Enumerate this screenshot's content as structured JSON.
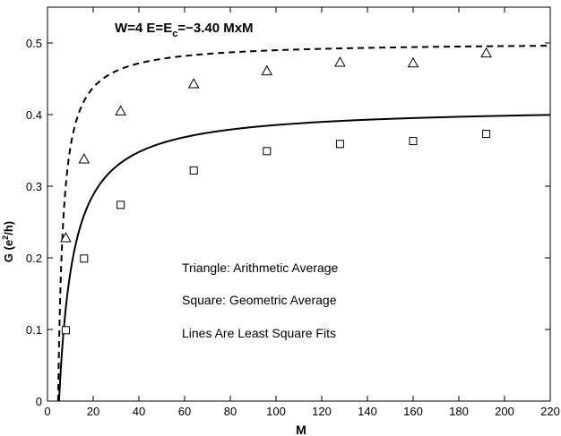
{
  "chart_data": {
    "type": "scatter",
    "title_parts": {
      "prefix": "W=4  E=E",
      "sub": "c",
      "suffix": "=−3.40  MxM"
    },
    "xlabel": "M",
    "ylabel_parts": {
      "prefix": "G (e",
      "sup": "2",
      "suffix": "/h)"
    },
    "xlim": [
      0,
      220
    ],
    "ylim": [
      0,
      0.55
    ],
    "xticks": [
      0,
      20,
      40,
      60,
      80,
      100,
      120,
      140,
      160,
      180,
      200,
      220
    ],
    "yticks": [
      0,
      0.1,
      0.2,
      0.3,
      0.4,
      0.5
    ],
    "xtick_labels": [
      "0",
      "20",
      "40",
      "60",
      "80",
      "100",
      "120",
      "140",
      "160",
      "180",
      "200",
      "220"
    ],
    "ytick_labels": [
      "0",
      "0.1",
      "0.2",
      "0.3",
      "0.4",
      "0.5"
    ],
    "grid": false,
    "series": [
      {
        "marker": "triangle",
        "line": "dashed",
        "points": [
          {
            "x": 8,
            "y": 0.228
          },
          {
            "x": 16,
            "y": 0.338
          },
          {
            "x": 32,
            "y": 0.405
          },
          {
            "x": 64,
            "y": 0.443
          },
          {
            "x": 96,
            "y": 0.461
          },
          {
            "x": 128,
            "y": 0.473
          },
          {
            "x": 160,
            "y": 0.472
          },
          {
            "x": 192,
            "y": 0.486
          }
        ],
        "fit": {
          "a": 0.5013,
          "b": 2.23,
          "x0": 4.65
        }
      },
      {
        "marker": "square",
        "line": "solid",
        "points": [
          {
            "x": 8,
            "y": 0.099
          },
          {
            "x": 16,
            "y": 0.199
          },
          {
            "x": 32,
            "y": 0.274
          },
          {
            "x": 64,
            "y": 0.322
          },
          {
            "x": 96,
            "y": 0.349
          },
          {
            "x": 128,
            "y": 0.359
          },
          {
            "x": 160,
            "y": 0.363
          },
          {
            "x": 192,
            "y": 0.373
          }
        ],
        "fit": {
          "a": 0.4115,
          "b": 6.41,
          "x0": 5.05
        }
      }
    ],
    "annotations": [
      "Triangle: Arithmetic Average",
      "Square: Geometric Average",
      "Lines Are Least Square Fits"
    ]
  }
}
